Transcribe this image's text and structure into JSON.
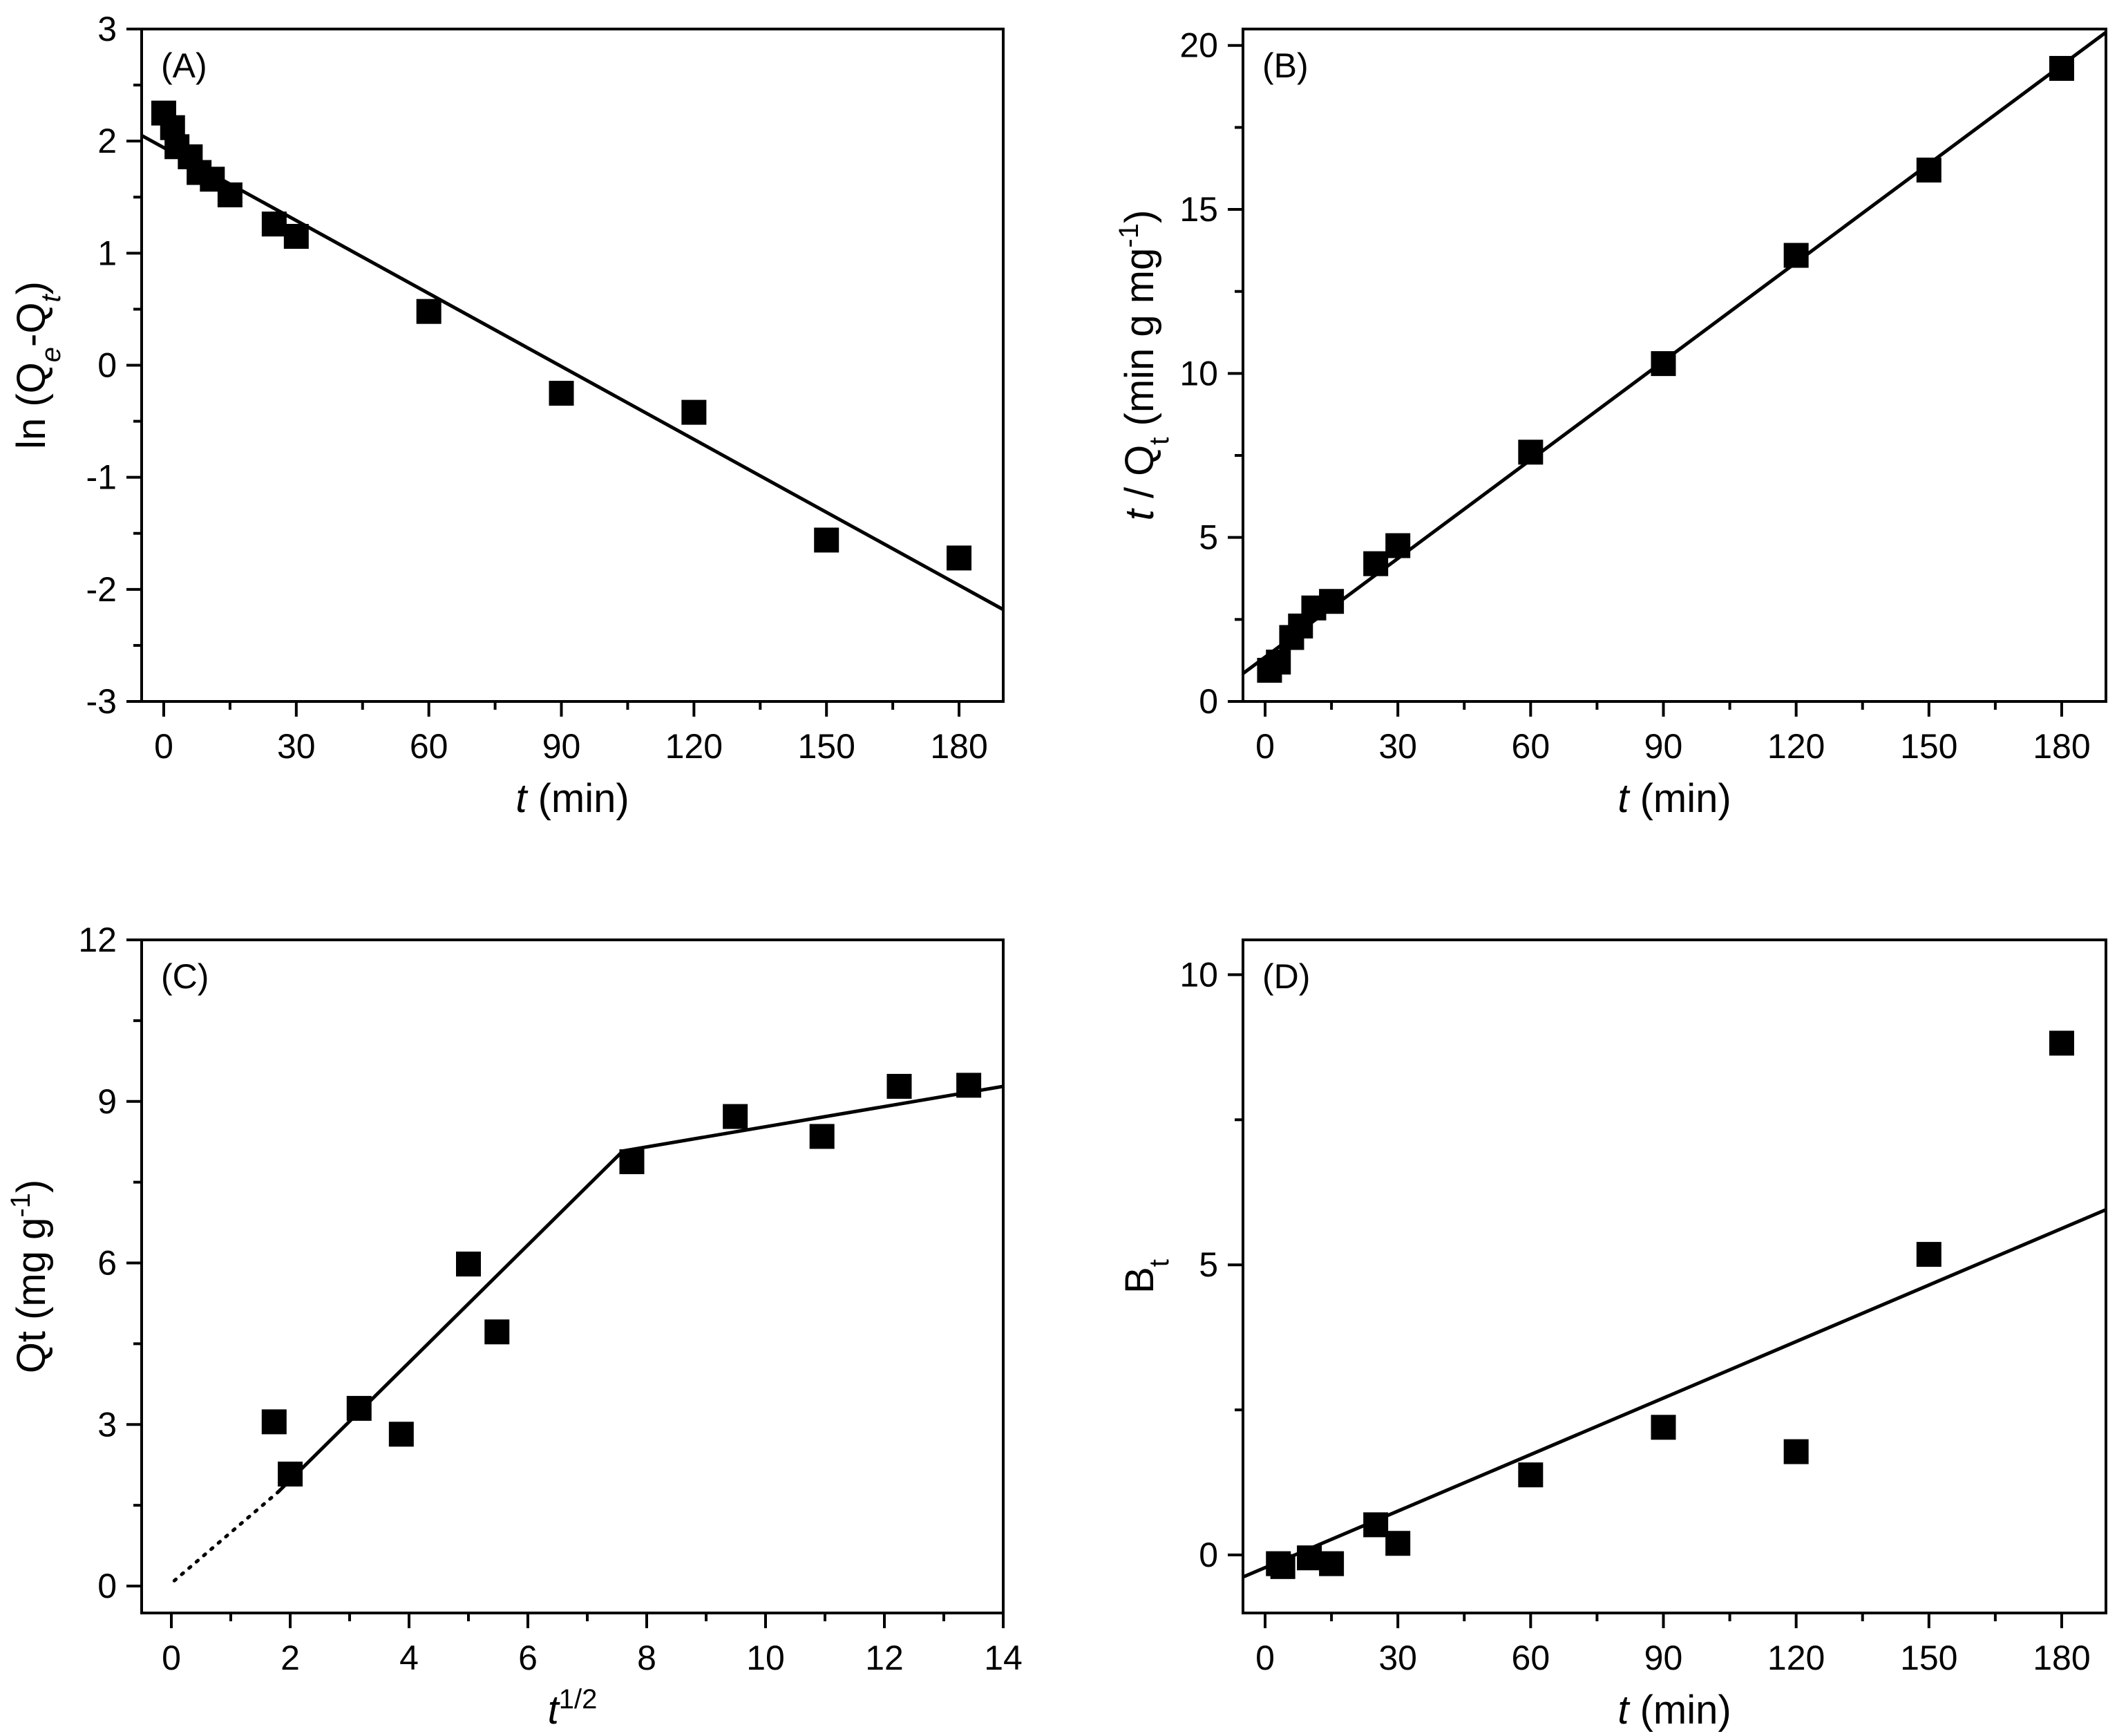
{
  "chart_data": [
    {
      "id": "A",
      "type": "scatter",
      "panel_label": "(A)",
      "xlabel": {
        "italic": "t",
        "rest": " (min)"
      },
      "ylabel": "ln (Qe-Qt)",
      "xlim": [
        -5,
        190
      ],
      "ylim": [
        -3,
        3
      ],
      "xticks": [
        0,
        30,
        60,
        90,
        120,
        150,
        180
      ],
      "yticks": [
        -3,
        -2,
        -1,
        0,
        1,
        2,
        3
      ],
      "xminor": 15,
      "yminor": 0.5,
      "points": [
        [
          0,
          2.25
        ],
        [
          2,
          2.12
        ],
        [
          3,
          1.95
        ],
        [
          6,
          1.86
        ],
        [
          8,
          1.72
        ],
        [
          11,
          1.66
        ],
        [
          15,
          1.52
        ],
        [
          25,
          1.26
        ],
        [
          30,
          1.15
        ],
        [
          60,
          0.48
        ],
        [
          90,
          -0.25
        ],
        [
          120,
          -0.42
        ],
        [
          150,
          -1.56
        ],
        [
          180,
          -1.72
        ]
      ],
      "fits": [
        {
          "x": [
            -5,
            190
          ],
          "y": [
            2.05,
            -2.18
          ],
          "style": "solid"
        }
      ]
    },
    {
      "id": "B",
      "type": "scatter",
      "panel_label": "(B)",
      "xlabel": {
        "italic": "t",
        "rest": " (min)"
      },
      "ylabel": "t / Qt (min g mg-1)",
      "xlim": [
        -5,
        190
      ],
      "ylim": [
        0,
        20.5
      ],
      "xticks": [
        0,
        30,
        60,
        90,
        120,
        150,
        180
      ],
      "yticks": [
        0,
        5,
        10,
        15,
        20
      ],
      "xminor": 15,
      "yminor": 2.5,
      "points": [
        [
          1,
          0.95
        ],
        [
          3,
          1.2
        ],
        [
          6,
          1.95
        ],
        [
          8,
          2.3
        ],
        [
          11,
          2.85
        ],
        [
          15,
          3.05
        ],
        [
          25,
          4.2
        ],
        [
          30,
          4.75
        ],
        [
          60,
          7.6
        ],
        [
          90,
          10.3
        ],
        [
          120,
          13.6
        ],
        [
          150,
          16.2
        ],
        [
          180,
          19.3
        ]
      ],
      "fits": [
        {
          "x": [
            -5,
            190
          ],
          "y": [
            0.85,
            20.4
          ],
          "style": "solid"
        }
      ]
    },
    {
      "id": "C",
      "type": "scatter",
      "panel_label": "(C)",
      "xlabel": {
        "italic": "t",
        "sup": "1/2"
      },
      "ylabel": "Qt (mg g-1)",
      "xlim": [
        -0.5,
        14
      ],
      "ylim": [
        -0.5,
        12
      ],
      "xticks": [
        0,
        2,
        4,
        6,
        8,
        10,
        12,
        14
      ],
      "yticks": [
        0,
        3,
        6,
        9,
        12
      ],
      "xminor": 1,
      "yminor": 1.5,
      "points": [
        [
          1.73,
          3.05
        ],
        [
          2.0,
          2.08
        ],
        [
          3.16,
          3.3
        ],
        [
          3.87,
          2.82
        ],
        [
          5.0,
          5.98
        ],
        [
          5.48,
          4.72
        ],
        [
          7.75,
          7.88
        ],
        [
          9.49,
          8.72
        ],
        [
          10.95,
          8.35
        ],
        [
          12.25,
          9.28
        ],
        [
          13.42,
          9.3
        ]
      ],
      "fits": [
        {
          "x": [
            0.05,
            1.8
          ],
          "y": [
            0.1,
            1.75
          ],
          "style": "dotted"
        },
        {
          "x": [
            1.8,
            7.6
          ],
          "y": [
            1.75,
            8.08
          ],
          "style": "solid"
        },
        {
          "x": [
            7.6,
            14
          ],
          "y": [
            8.08,
            9.28
          ],
          "style": "solid"
        }
      ]
    },
    {
      "id": "D",
      "type": "scatter",
      "panel_label": "(D)",
      "xlabel": {
        "italic": "t",
        "rest": " (min)"
      },
      "ylabel": "Bt",
      "xlim": [
        -5,
        190
      ],
      "ylim": [
        -1,
        10.6
      ],
      "xticks": [
        0,
        30,
        60,
        90,
        120,
        150,
        180
      ],
      "yticks": [
        0,
        5,
        10
      ],
      "xminor": 15,
      "yminor": 2.5,
      "points": [
        [
          3,
          -0.15
        ],
        [
          4,
          -0.2
        ],
        [
          10,
          -0.05
        ],
        [
          15,
          -0.15
        ],
        [
          25,
          0.52
        ],
        [
          30,
          0.2
        ],
        [
          60,
          1.38
        ],
        [
          90,
          2.2
        ],
        [
          120,
          1.78
        ],
        [
          150,
          5.18
        ],
        [
          180,
          8.82
        ]
      ],
      "fits": [
        {
          "x": [
            -5,
            190
          ],
          "y": [
            -0.38,
            5.95
          ],
          "style": "solid"
        }
      ]
    }
  ]
}
